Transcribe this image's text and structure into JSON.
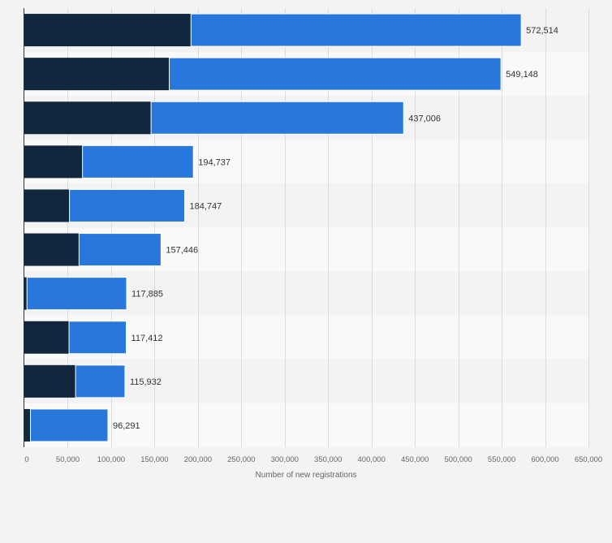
{
  "chart_data": {
    "type": "bar",
    "orientation": "horizontal",
    "stacked": true,
    "title": "",
    "xlabel": "Number of new registrations",
    "ylabel": "",
    "xlim": [
      0,
      650000
    ],
    "x_ticks": [
      0,
      50000,
      100000,
      150000,
      200000,
      250000,
      300000,
      350000,
      400000,
      450000,
      500000,
      550000,
      600000,
      650000
    ],
    "x_tick_labels": [
      "0",
      "50,000",
      "100,000",
      "150,000",
      "200,000",
      "250,000",
      "300,000",
      "350,000",
      "400,000",
      "450,000",
      "500,000",
      "550,000",
      "600,000",
      "650,000"
    ],
    "grid": true,
    "categories": [
      "",
      "",
      "",
      "",
      "",
      "",
      "",
      "",
      "",
      ""
    ],
    "series": [
      {
        "name": "",
        "color": "#10273d",
        "values": [
          192000,
          167000,
          146000,
          67000,
          52000,
          63000,
          3000,
          51500,
          59000,
          7000
        ]
      },
      {
        "name": "",
        "color": "#2878dc",
        "values": [
          380514,
          382148,
          291006,
          127737,
          132747,
          94446,
          114885,
          65912,
          56932,
          89291
        ]
      }
    ],
    "totals": [
      572514,
      549148,
      437006,
      194737,
      184747,
      157446,
      117885,
      117412,
      115932,
      96291
    ],
    "total_labels": [
      "572,514",
      "549,148",
      "437,006",
      "194,737",
      "184,747",
      "157,446",
      "117,885",
      "117,412",
      "115,932",
      "96,291"
    ]
  }
}
